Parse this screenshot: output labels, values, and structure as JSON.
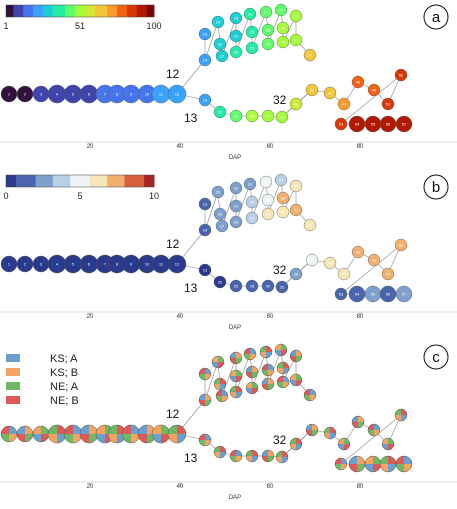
{
  "panels": [
    {
      "label": "a",
      "colorbar_ticks": [
        "1",
        "51",
        "100"
      ]
    },
    {
      "label": "b",
      "colorbar_ticks": [
        "0",
        "5",
        "10"
      ]
    },
    {
      "label": "c"
    }
  ],
  "branch_labels": [
    "12",
    "13",
    "32"
  ],
  "x_tick_labels": [
    "20",
    "40",
    "60",
    "80"
  ],
  "x_axis_label": "DAP",
  "legend": [
    {
      "label": "KS; A",
      "color": "#6a9fd0"
    },
    {
      "label": "KS; B",
      "color": "#f2a460"
    },
    {
      "label": "NE; A",
      "color": "#6fb864"
    },
    {
      "label": "NE; B",
      "color": "#db5b5b"
    }
  ],
  "colors": {
    "turbo": [
      "#30123b",
      "#4145ab",
      "#4675ed",
      "#39a2fc",
      "#1bcfd4",
      "#24eca6",
      "#61fc6c",
      "#a4fc3b",
      "#d1e834",
      "#f3c63a",
      "#fe9b2d",
      "#f36315",
      "#d93806",
      "#b11901",
      "#7a0403"
    ],
    "divergent": [
      "#2b3a8c",
      "#4a64ad",
      "#7fa0cc",
      "#b7d0e6",
      "#eef3f5",
      "#f5e6b8",
      "#f1b070",
      "#d9603f",
      "#a5232b"
    ]
  },
  "diagram": {
    "trunk": [
      {
        "id": 1,
        "v": 0
      },
      {
        "id": 2,
        "v": 0
      },
      {
        "id": 3,
        "v": 0
      },
      {
        "id": 4,
        "v": 0
      },
      {
        "id": 5,
        "v": 0
      },
      {
        "id": 6,
        "v": 0
      },
      {
        "id": 7,
        "v": 0
      },
      {
        "id": 8,
        "v": 0
      },
      {
        "id": 9,
        "v": 0
      },
      {
        "id": 10,
        "v": 0
      },
      {
        "id": 11,
        "v": 0
      },
      {
        "id": 12,
        "v": 0
      }
    ],
    "upper": [
      {
        "id": 13,
        "v": 1
      },
      {
        "id": 14,
        "v": 1
      },
      {
        "id": 15,
        "v": 2
      },
      {
        "id": 16,
        "v": 2
      },
      {
        "id": 17,
        "v": 2
      },
      {
        "id": 18,
        "v": 3
      },
      {
        "id": 19,
        "v": 2
      },
      {
        "id": 20,
        "v": 3
      },
      {
        "id": 21,
        "v": 3
      },
      {
        "id": 22,
        "v": 4
      },
      {
        "id": 23,
        "v": 4
      },
      {
        "id": 24,
        "v": 5
      },
      {
        "id": 25,
        "v": 5
      },
      {
        "id": 26,
        "v": 6
      },
      {
        "id": 27,
        "v": 4
      },
      {
        "id": 28,
        "v": 8
      },
      {
        "id": 29,
        "v": 6
      },
      {
        "id": 30,
        "v": 6
      },
      {
        "id": 31,
        "v": 7
      },
      {
        "id": 37,
        "v": 6
      }
    ],
    "lower": [
      {
        "id": 13,
        "v": 0
      },
      {
        "id": 20,
        "v": 0
      },
      {
        "id": 25,
        "v": 1
      },
      {
        "id": 28,
        "v": 1
      },
      {
        "id": 30,
        "v": 1
      },
      {
        "id": 32,
        "v": 1
      },
      {
        "id": 36,
        "v": 2
      },
      {
        "id": 38,
        "v": 5
      },
      {
        "id": 40,
        "v": 6
      },
      {
        "id": 43,
        "v": 6
      },
      {
        "id": 46,
        "v": 7
      },
      {
        "id": 49,
        "v": 7
      },
      {
        "id": 51,
        "v": 7
      },
      {
        "id": 52,
        "v": 7
      },
      {
        "id": 53,
        "v": 1
      },
      {
        "id": 54,
        "v": 1
      },
      {
        "id": 55,
        "v": 2
      },
      {
        "id": 56,
        "v": 1
      },
      {
        "id": 57,
        "v": 2
      }
    ]
  }
}
